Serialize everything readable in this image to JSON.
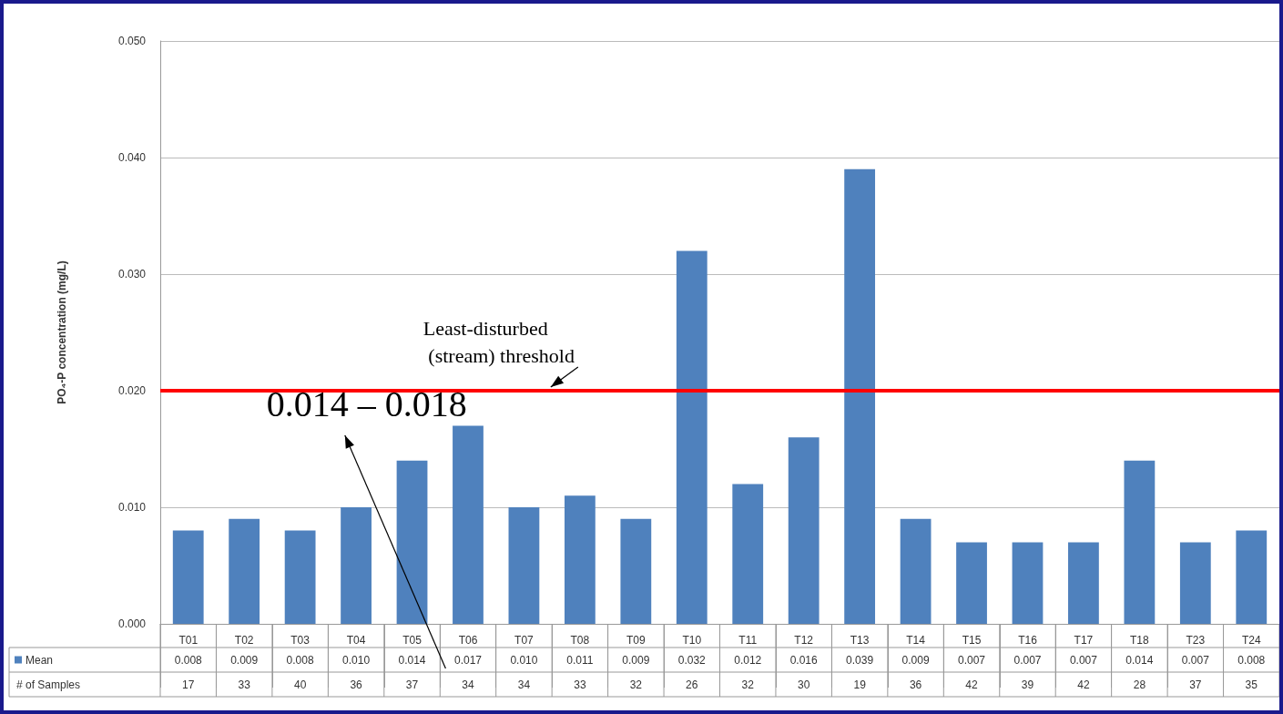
{
  "chart_data": {
    "type": "bar",
    "ylabel": "PO₄-P concentration (mg/L)",
    "categories": [
      "T01",
      "T02",
      "T03",
      "T04",
      "T05",
      "T06",
      "T07",
      "T08",
      "T09",
      "T10",
      "T11",
      "T12",
      "T13",
      "T14",
      "T15",
      "T16",
      "T17",
      "T18",
      "T23",
      "T24"
    ],
    "series": [
      {
        "name": "Mean",
        "color": "#4f81bd",
        "values": [
          0.008,
          0.009,
          0.008,
          0.01,
          0.014,
          0.017,
          0.01,
          0.011,
          0.009,
          0.032,
          0.012,
          0.016,
          0.039,
          0.009,
          0.007,
          0.007,
          0.007,
          0.014,
          0.007,
          0.008
        ],
        "value_labels": [
          "0.008",
          "0.009",
          "0.008",
          "0.010",
          "0.014",
          "0.017",
          "0.010",
          "0.011",
          "0.009",
          "0.032",
          "0.012",
          "0.016",
          "0.039",
          "0.009",
          "0.007",
          "0.007",
          "0.007",
          "0.014",
          "0.007",
          "0.008"
        ]
      }
    ],
    "ylim": [
      0,
      0.05
    ],
    "yticks": [
      {
        "value": 0,
        "label": "0.000"
      },
      {
        "value": 0.01,
        "label": "0.010"
      },
      {
        "value": 0.02,
        "label": "0.020"
      },
      {
        "value": 0.03,
        "label": "0.030"
      },
      {
        "value": 0.04,
        "label": "0.040"
      },
      {
        "value": 0.05,
        "label": "0.050"
      }
    ],
    "grid": "y",
    "ref_lines": [
      {
        "axis": "y",
        "value": 0.02,
        "label": "Least-disturbed\n (stream) threshold",
        "color": "#ff0000",
        "line_style": "solid"
      }
    ],
    "annotations": [
      "0.014 – 0.018",
      "# of Samples",
      "17",
      "33",
      "40",
      "36",
      "37",
      "34",
      "34",
      "33",
      "32",
      "26",
      "32",
      "30",
      "19",
      "36",
      "42",
      "39",
      "42",
      "28",
      "37",
      "35"
    ]
  }
}
